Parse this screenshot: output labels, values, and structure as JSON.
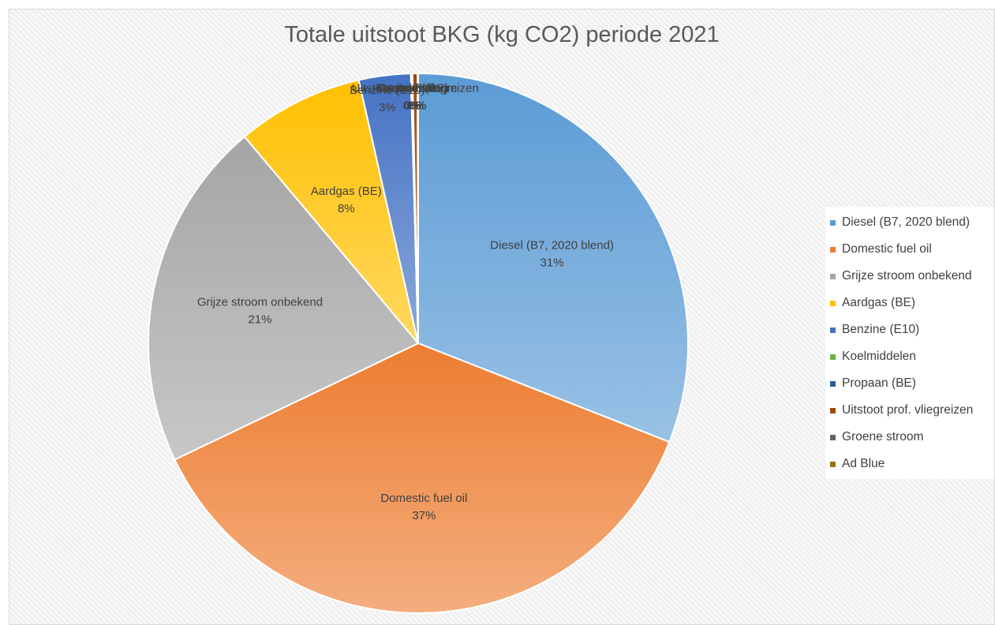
{
  "chart_data": {
    "type": "pie",
    "title": "Totale uitstoot BKG (kg CO2) periode 2021",
    "legend_position": "right",
    "slices": [
      {
        "label": "Diesel (B7, 2020 blend)",
        "value": 31,
        "display": "31%",
        "color": "#5b9bd5"
      },
      {
        "label": "Domestic fuel oil",
        "value": 37,
        "display": "37%",
        "color": "#ed7d31"
      },
      {
        "label": "Grijze stroom onbekend",
        "value": 21,
        "display": "21%",
        "color": "#a5a5a5"
      },
      {
        "label": "Aardgas (BE)",
        "value": 7.6,
        "display": "8%",
        "color": "#ffc000"
      },
      {
        "label": "Benzine (E10)",
        "value": 3.1,
        "display": "3%",
        "color": "#4472c4"
      },
      {
        "label": "Koelmiddelen",
        "value": 0.05,
        "display": "0%",
        "color": "#70ad47"
      },
      {
        "label": "Propaan (BE)",
        "value": 0.05,
        "display": "0%",
        "color": "#255e91"
      },
      {
        "label": "Uitstoot prof. vliegreizen",
        "value": 0.3,
        "display": "0%",
        "color": "#9e480e"
      },
      {
        "label": "Groene stroom",
        "value": 0.02,
        "display": "0%",
        "color": "#636363"
      },
      {
        "label": "Ad Blue",
        "value": 0.02,
        "display": "0%",
        "color": "#997300"
      }
    ]
  }
}
